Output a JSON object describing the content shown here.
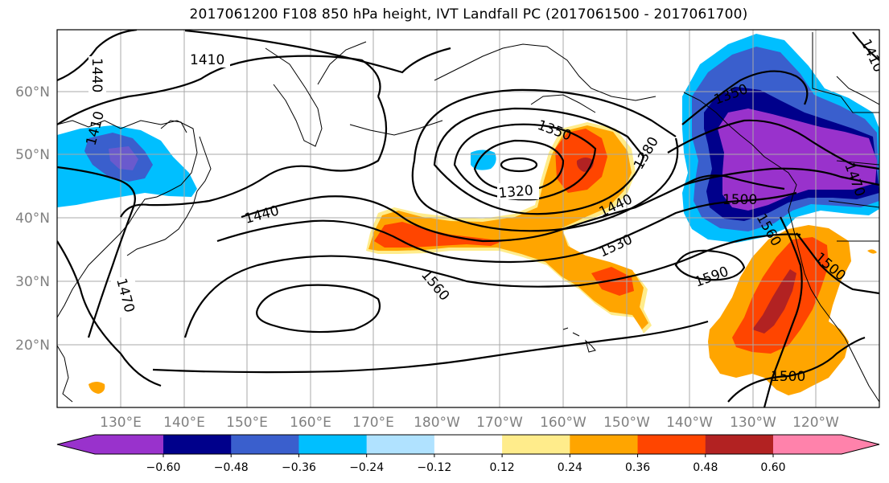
{
  "title": "2017061200 F108 850 hPa height, IVT Landfall PC (2017061500 - 2017061700)",
  "lat_labels": [
    "60°N",
    "50°N",
    "40°N",
    "30°N",
    "20°N"
  ],
  "lon_labels": [
    "130°E",
    "140°E",
    "150°E",
    "160°E",
    "170°E",
    "180°W",
    "170°W",
    "160°W",
    "150°W",
    "140°W",
    "130°W",
    "120°W"
  ],
  "contour_labels": {
    "c1410a": "1410",
    "c1440a": "1440",
    "c1410b": "1410",
    "c1470": "1470",
    "c1440b": "1440",
    "c1350a": "1350",
    "c1320": "1320",
    "c1380": "1380",
    "c1440c": "1440",
    "c1530": "1530",
    "c1560a": "1560",
    "c1590": "1590",
    "c1500a": "1500",
    "c1560b": "1560",
    "c1500b": "1500",
    "c1500c": "1500",
    "c1350b": "1350",
    "c1410c": "1410",
    "c1470b": "1470"
  },
  "colorbar": {
    "ticks": [
      "−0.60",
      "−0.48",
      "−0.36",
      "−0.24",
      "−0.12",
      "0.12",
      "0.24",
      "0.36",
      "0.48",
      "0.60"
    ],
    "colors": [
      "#9932cc",
      "#00008b",
      "#3a5fcd",
      "#00bfff",
      "#b0e2ff",
      "#ffffff",
      "#ffec8b",
      "#ffa500",
      "#ff4500",
      "#b22222",
      "#ff82ab"
    ]
  }
}
